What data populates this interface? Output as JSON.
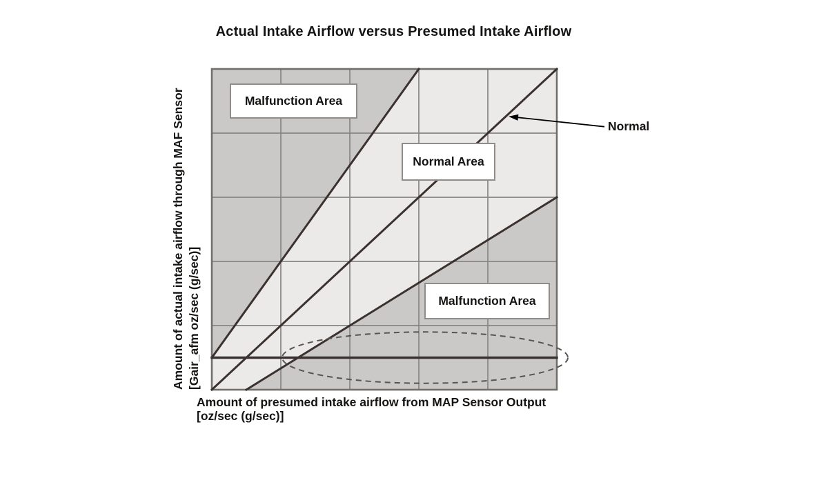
{
  "title": "Actual Intake Airflow versus Presumed Intake Airflow",
  "axis_labels": {
    "y1": "Amount of actual intake airflow through MAF Sensor",
    "y2": "[Gair_afm oz/sec (g/sec)]",
    "x1": "Amount of presumed intake airflow from MAP Sensor Output",
    "x2": "[oz/sec (g/sec)]"
  },
  "colors": {
    "region_light": "#ebeae9",
    "region_dark": "#cac9c8",
    "grid": "#878583",
    "border": "#716e6c",
    "line_dark": "#3b322e",
    "ellipse": "#57534f",
    "arrow": "#000000",
    "box_border": "#8f8c89",
    "text": "#161412"
  },
  "chart_data": {
    "type": "line",
    "title": "Actual Intake Airflow versus Presumed Intake Airflow",
    "xlabel": "Amount of presumed intake airflow from MAP Sensor Output [oz/sec (g/sec)]",
    "ylabel": "Amount of actual intake airflow through MAF Sensor [Gair_afm oz/sec (g/sec)]",
    "x_range": [
      0,
      5
    ],
    "y_range": [
      0,
      5
    ],
    "grid": true,
    "grid_step": 1,
    "tick_labels": "none shown (qualitative axes in grid-cell units)",
    "series": [
      {
        "name": "upper-malfunction-threshold",
        "points": [
          [
            0,
            0.5
          ],
          [
            3,
            5
          ]
        ]
      },
      {
        "name": "normal-correlation-line",
        "label": "Normal",
        "points": [
          [
            0,
            0
          ],
          [
            5,
            5
          ]
        ]
      },
      {
        "name": "lower-malfunction-threshold",
        "points": [
          [
            0.5,
            0
          ],
          [
            5,
            3
          ]
        ]
      },
      {
        "name": "low-airflow-boundary-line",
        "points": [
          [
            0,
            0.5
          ],
          [
            5,
            0.5
          ]
        ]
      }
    ],
    "regions": [
      {
        "name": "malfunction-area-upper",
        "label": "Malfunction Area",
        "fill": "dark",
        "polygon": [
          [
            0,
            0.5
          ],
          [
            0,
            5
          ],
          [
            3,
            5
          ]
        ]
      },
      {
        "name": "normal-area",
        "label": "Normal Area",
        "fill": "light",
        "polygon": [
          [
            0,
            0
          ],
          [
            0,
            0.5
          ],
          [
            3,
            5
          ],
          [
            5,
            5
          ],
          [
            5,
            3
          ],
          [
            0.5,
            0
          ]
        ]
      },
      {
        "name": "malfunction-area-lower",
        "label": "Malfunction Area",
        "fill": "dark",
        "polygon": [
          [
            0.5,
            0
          ],
          [
            5,
            3
          ],
          [
            5,
            0
          ]
        ]
      }
    ],
    "annotations": [
      {
        "type": "dashed-ellipse",
        "name": "low-airflow-highlight",
        "center": [
          3.09,
          0.5
        ],
        "rx": 2.07,
        "ry": 0.4
      },
      {
        "type": "arrow",
        "name": "normal-line-callout",
        "label": "Normal",
        "tip": [
          4.3,
          4.26
        ],
        "tail": [
          5.69,
          4.1
        ]
      }
    ]
  }
}
